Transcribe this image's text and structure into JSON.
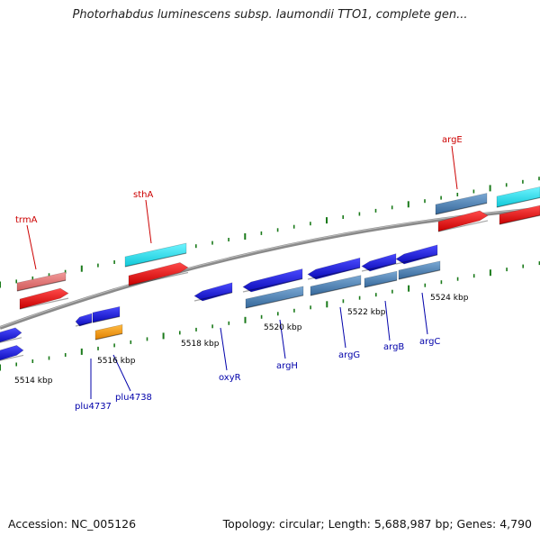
{
  "map": {
    "title": "Photorhabdus luminescens subsp. laumondii TTO1, complete gen...",
    "accession_text": "Accession: NC_005126",
    "summary_text": "Topology: circular; Length: 5,688,987 bp; Genes: 4,790"
  },
  "ticks": [
    {
      "label": "5514 kbp"
    },
    {
      "label": "5516 kbp"
    },
    {
      "label": "5518 kbp"
    },
    {
      "label": "5520 kbp"
    },
    {
      "label": "5522 kbp"
    },
    {
      "label": "5524 kbp"
    }
  ],
  "genes_forward": [
    {
      "name": "trmA"
    },
    {
      "name": "sthA"
    },
    {
      "name": "argE"
    }
  ],
  "genes_reverse": [
    {
      "name": "plu4737"
    },
    {
      "name": "plu4738"
    },
    {
      "name": "oxyR"
    },
    {
      "name": "argH"
    },
    {
      "name": "argG"
    },
    {
      "name": "argB"
    },
    {
      "name": "argC"
    }
  ],
  "colors": {
    "backbone": "#7f7f7f",
    "tick": "#1a7a1a",
    "forward_label": "#cc0000",
    "reverse_label": "#0000aa",
    "cds_red": "#ee1111",
    "cds_pink": "#e87a7a",
    "cds_cyan": "#22e0ee",
    "cds_steel": "#4f86b8",
    "cds_blue": "#1515dd",
    "cds_orange": "#ff9900"
  }
}
